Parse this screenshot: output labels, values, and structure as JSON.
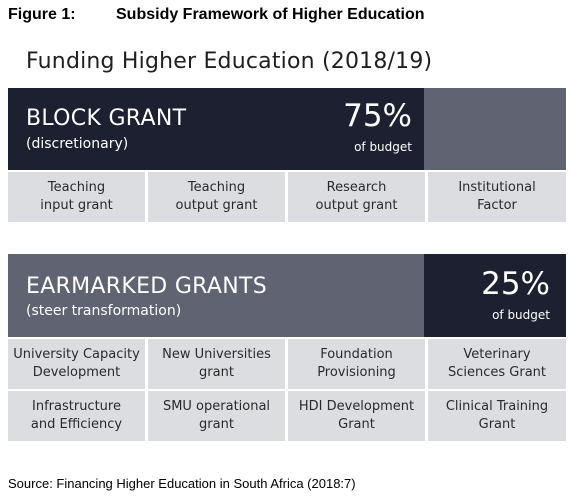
{
  "figure": {
    "number": "Figure 1:",
    "caption": "Subsidy Framework of Higher Education"
  },
  "title": "Funding Higher Education (2018/19)",
  "block_grant": {
    "title": "BLOCK GRANT",
    "subtitle": "(discretionary)",
    "percent": "75%",
    "percent_label": "of budget",
    "components": [
      [
        "Teaching",
        "input grant"
      ],
      [
        "Teaching",
        "output grant"
      ],
      [
        "Research",
        "output grant"
      ],
      [
        "Institutional",
        "Factor"
      ]
    ]
  },
  "earmarked_grants": {
    "title": "EARMARKED GRANTS",
    "subtitle": "(steer transformation)",
    "percent": "25%",
    "percent_label": "of budget",
    "components": [
      [
        "University Capacity",
        "Development"
      ],
      [
        "New Universities",
        "grant"
      ],
      [
        "Foundation",
        "Provisioning"
      ],
      [
        "Veterinary",
        "Sciences Grant"
      ],
      [
        "Infrastructure",
        "and Efficiency"
      ],
      [
        "SMU operational",
        "grant"
      ],
      [
        "HDI Development",
        "Grant"
      ],
      [
        "Clinical Training",
        "Grant"
      ]
    ]
  },
  "source": "Source: Financing Higher Education in South Africa (2018:7)",
  "colors": {
    "dark_panel": "#1d2030",
    "grey_panel": "#5f6372",
    "cell_fill": "#dcdde0"
  }
}
